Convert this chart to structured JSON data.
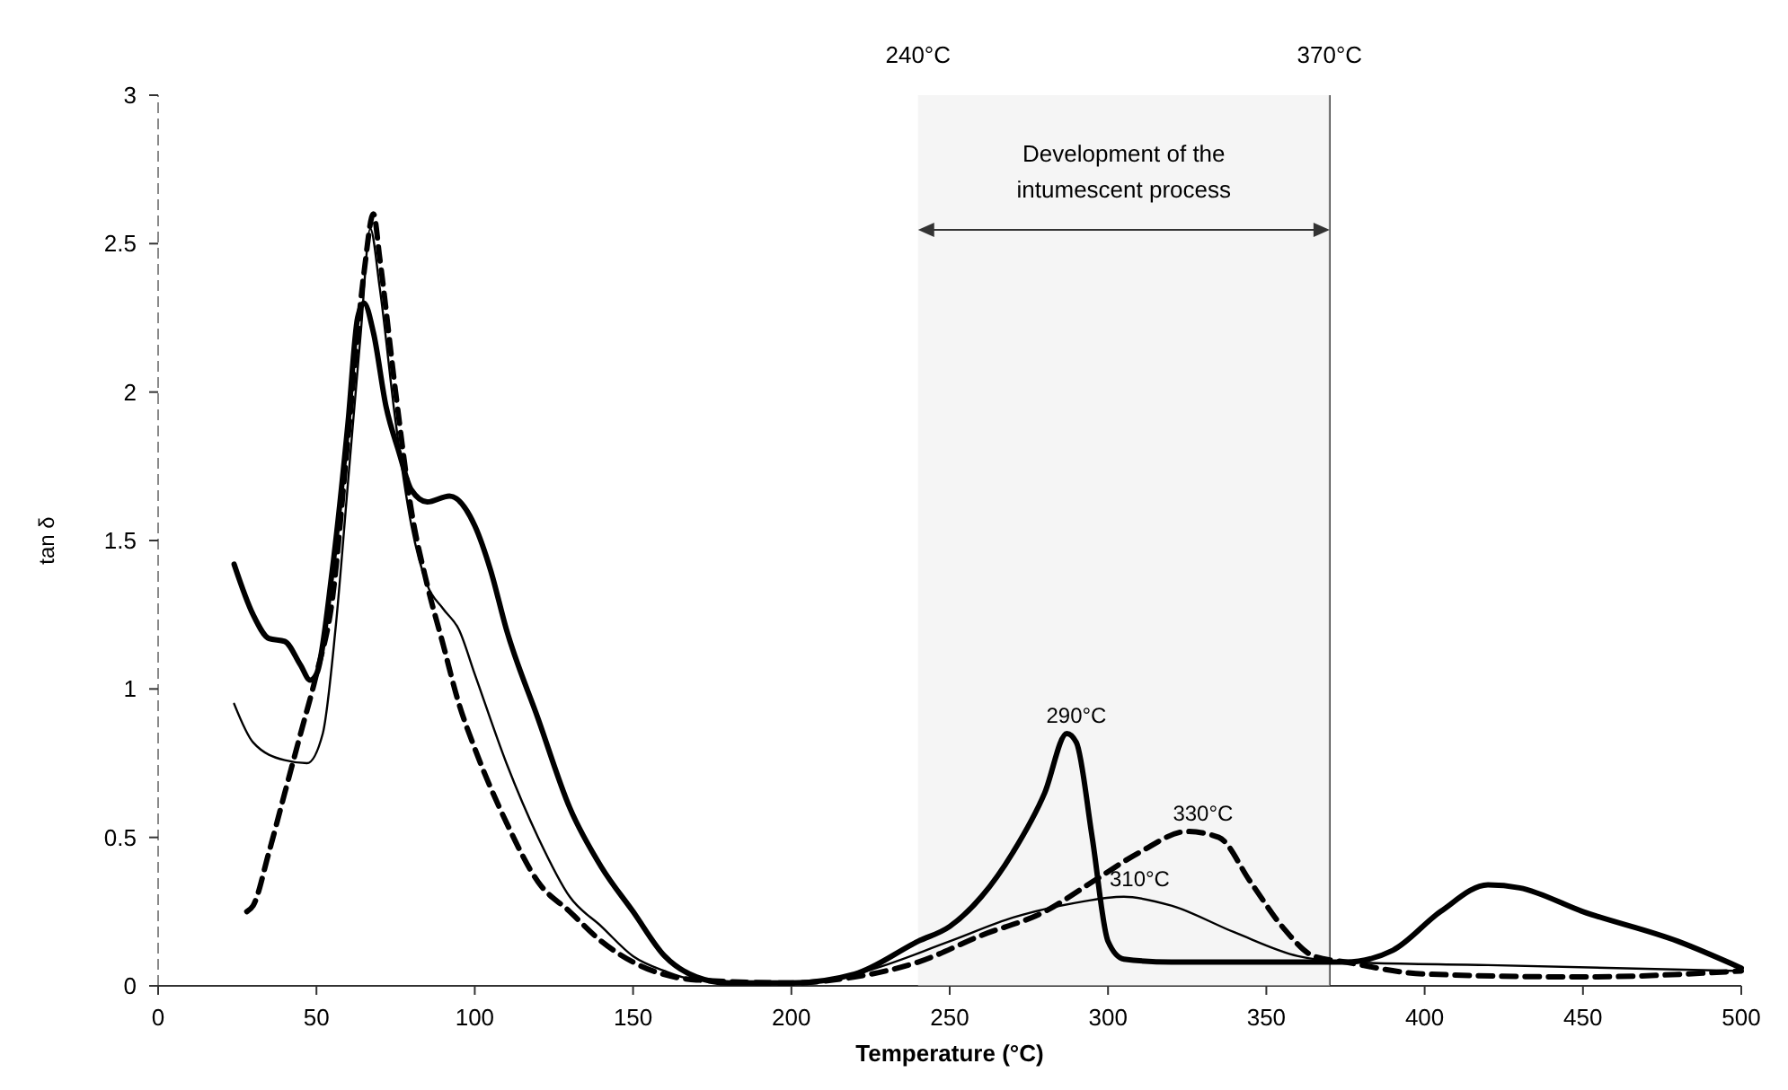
{
  "chart_data": {
    "type": "line",
    "xlabel": "Temperature (°C)",
    "ylabel": "tan δ",
    "xlim": [
      0,
      500
    ],
    "xticks": [
      0,
      50,
      100,
      150,
      200,
      250,
      300,
      350,
      400,
      450,
      500
    ],
    "ylim": [
      0,
      3
    ],
    "yticks": [
      0,
      0.5,
      1,
      1.5,
      2,
      2.5,
      3
    ],
    "grid": false,
    "marker": "none",
    "series": [
      {
        "color": "#000000",
        "line_style": "solid",
        "x": [
          24,
          30,
          35,
          40,
          45,
          48,
          50,
          55,
          60,
          63,
          65,
          68,
          72,
          76,
          80,
          85,
          92,
          100,
          105,
          110,
          120,
          130,
          140,
          150,
          160,
          170,
          180,
          200,
          220,
          240,
          250,
          260,
          270,
          280,
          287,
          290,
          295,
          300,
          305,
          320,
          350,
          375,
          390,
          405,
          420,
          430,
          450,
          480,
          500
        ],
        "values": [
          1.42,
          1.25,
          1.17,
          1.16,
          1.08,
          1.03,
          1.05,
          1.4,
          1.9,
          2.25,
          2.3,
          2.2,
          1.95,
          1.8,
          1.67,
          1.63,
          1.65,
          1.55,
          1.4,
          1.2,
          0.9,
          0.6,
          0.4,
          0.25,
          0.1,
          0.03,
          0.01,
          0.01,
          0.04,
          0.15,
          0.2,
          0.3,
          0.45,
          0.65,
          0.85,
          0.82,
          0.5,
          0.15,
          0.09,
          0.08,
          0.08,
          0.08,
          0.12,
          0.25,
          0.34,
          0.33,
          0.25,
          0.15,
          0.06
        ]
      },
      {
        "color": "#000000",
        "line_style": "solid",
        "x": [
          24,
          30,
          40,
          47,
          52,
          56,
          60,
          64,
          67,
          70,
          75,
          80,
          85,
          90,
          95,
          100,
          110,
          120,
          130,
          140,
          150,
          160,
          170,
          200,
          220,
          250,
          270,
          290,
          305,
          320,
          340,
          360,
          375,
          420,
          500
        ],
        "values": [
          0.95,
          0.82,
          0.76,
          0.75,
          0.85,
          1.2,
          1.7,
          2.2,
          2.55,
          2.35,
          1.9,
          1.55,
          1.35,
          1.27,
          1.2,
          1.05,
          0.75,
          0.5,
          0.3,
          0.2,
          0.1,
          0.05,
          0.02,
          0.01,
          0.04,
          0.15,
          0.23,
          0.28,
          0.3,
          0.27,
          0.18,
          0.1,
          0.08,
          0.07,
          0.05
        ]
      },
      {
        "color": "#000000",
        "line_style": "dashed",
        "x": [
          28,
          30,
          35,
          40,
          45,
          50,
          55,
          60,
          65,
          68,
          70,
          75,
          80,
          85,
          90,
          95,
          100,
          110,
          120,
          130,
          140,
          150,
          170,
          200,
          220,
          240,
          260,
          280,
          295,
          310,
          325,
          335,
          345,
          355,
          365,
          375,
          400,
          450,
          500
        ],
        "values": [
          0.25,
          0.27,
          0.45,
          0.65,
          0.85,
          1.05,
          1.3,
          1.85,
          2.4,
          2.6,
          2.45,
          2.0,
          1.6,
          1.35,
          1.15,
          0.95,
          0.8,
          0.55,
          0.35,
          0.25,
          0.15,
          0.08,
          0.02,
          0.01,
          0.03,
          0.08,
          0.17,
          0.25,
          0.35,
          0.45,
          0.52,
          0.5,
          0.35,
          0.2,
          0.1,
          0.08,
          0.04,
          0.03,
          0.05
        ]
      }
    ],
    "ref_lines": [
      {
        "axis": "x",
        "value": 370,
        "label": "370°C",
        "line_style": "solid"
      }
    ],
    "bands": [
      {
        "axis": "x",
        "from": 240,
        "to": 370,
        "label": "Development of the intumescent process",
        "color": "#ececec"
      }
    ],
    "annotations": [
      "240°C",
      {
        "text": "290°C",
        "x": 290,
        "y": 0.85
      },
      {
        "text": "310°C",
        "x": 310,
        "y": 0.3
      },
      {
        "text": "330°C",
        "x": 330,
        "y": 0.52
      }
    ]
  }
}
